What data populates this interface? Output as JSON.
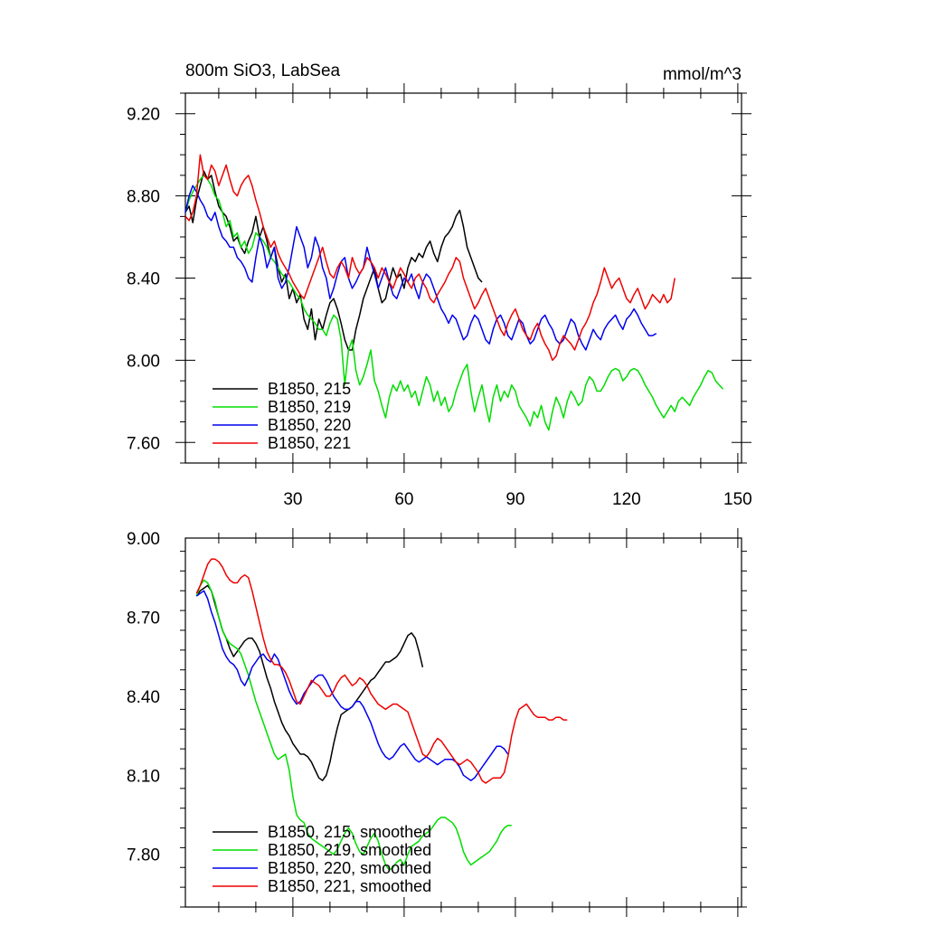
{
  "chart_data": [
    {
      "type": "line",
      "title": "800m SiO3, LabSea",
      "units": "mmol/m^3",
      "xlabel": "",
      "ylabel": "",
      "xlim": [
        1,
        151
      ],
      "ylim": [
        7.5,
        9.3
      ],
      "x_ticks": [
        30,
        60,
        90,
        120,
        150
      ],
      "x_tick_labels": [
        "30",
        "60",
        "90",
        "120",
        "150"
      ],
      "y_ticks": [
        7.6,
        8.0,
        8.4,
        8.8,
        9.2
      ],
      "y_tick_labels": [
        "7.60",
        "8.00",
        "8.40",
        "8.80",
        "9.20"
      ],
      "legend_position": "bottom-left",
      "series": [
        {
          "name": "B1850, 215",
          "color": "#000000",
          "x_start": 1,
          "values": [
            8.72,
            8.75,
            8.67,
            8.78,
            8.85,
            8.92,
            8.88,
            8.9,
            8.82,
            8.75,
            8.72,
            8.7,
            8.65,
            8.58,
            8.6,
            8.55,
            8.52,
            8.58,
            8.62,
            8.7,
            8.6,
            8.65,
            8.58,
            8.5,
            8.55,
            8.45,
            8.38,
            8.42,
            8.3,
            8.35,
            8.28,
            8.32,
            8.2,
            8.15,
            8.25,
            8.1,
            8.2,
            8.15,
            8.22,
            8.28,
            8.3,
            8.25,
            8.18,
            8.1,
            8.05,
            8.05,
            8.15,
            8.22,
            8.3,
            8.35,
            8.4,
            8.45,
            8.35,
            8.28,
            8.3,
            8.38,
            8.45,
            8.4,
            8.42,
            8.35,
            8.45,
            8.5,
            8.48,
            8.52,
            8.5,
            8.55,
            8.58,
            8.52,
            8.48,
            8.55,
            8.6,
            8.62,
            8.65,
            8.7,
            8.73,
            8.65,
            8.55,
            8.5,
            8.45,
            8.4,
            8.38
          ]
        },
        {
          "name": "B1850, 219",
          "color": "#00dd00",
          "x_start": 1,
          "values": [
            8.72,
            8.78,
            8.82,
            8.85,
            8.88,
            8.9,
            8.88,
            8.85,
            8.8,
            8.78,
            8.72,
            8.65,
            8.68,
            8.6,
            8.62,
            8.55,
            8.58,
            8.52,
            8.55,
            8.62,
            8.6,
            8.58,
            8.55,
            8.5,
            8.48,
            8.45,
            8.42,
            8.4,
            8.38,
            8.35,
            8.32,
            8.3,
            8.25,
            8.22,
            8.2,
            8.18,
            8.15,
            8.15,
            8.12,
            8.18,
            8.22,
            8.2,
            8.1,
            7.88,
            8.05,
            8.1,
            7.95,
            7.88,
            7.92,
            7.98,
            8.05,
            7.9,
            7.85,
            7.78,
            7.72,
            7.82,
            7.88,
            7.85,
            7.9,
            7.85,
            7.88,
            7.82,
            7.85,
            7.78,
            7.85,
            7.92,
            7.88,
            7.8,
            7.85,
            7.78,
            7.82,
            7.75,
            7.78,
            7.85,
            7.9,
            7.95,
            7.98,
            7.85,
            7.75,
            7.82,
            7.88,
            7.78,
            7.7,
            7.82,
            7.88,
            7.8,
            7.85,
            7.82,
            7.88,
            7.85,
            7.78,
            7.75,
            7.72,
            7.68,
            7.75,
            7.72,
            7.78,
            7.7,
            7.66,
            7.75,
            7.82,
            7.78,
            7.72,
            7.8,
            7.85,
            7.82,
            7.78,
            7.8,
            7.88,
            7.92,
            7.9,
            7.85,
            7.85,
            7.88,
            7.92,
            7.95,
            7.96,
            7.95,
            7.9,
            7.92,
            7.95,
            7.96,
            7.95,
            7.92,
            7.88,
            7.85,
            7.82,
            7.78,
            7.75,
            7.72,
            7.75,
            7.78,
            7.75,
            7.8,
            7.82,
            7.8,
            7.78,
            7.82,
            7.85,
            7.88,
            7.92,
            7.95,
            7.94,
            7.9,
            7.88,
            7.86
          ]
        },
        {
          "name": "B1850, 220",
          "color": "#0000ee",
          "x_start": 1,
          "values": [
            8.72,
            8.8,
            8.85,
            8.82,
            8.78,
            8.75,
            8.7,
            8.68,
            8.72,
            8.65,
            8.6,
            8.58,
            8.55,
            8.55,
            8.5,
            8.48,
            8.45,
            8.4,
            8.38,
            8.5,
            8.6,
            8.55,
            8.45,
            8.5,
            8.55,
            8.4,
            8.35,
            8.38,
            8.45,
            8.55,
            8.65,
            8.6,
            8.55,
            8.45,
            8.5,
            8.6,
            8.55,
            8.45,
            8.4,
            8.3,
            8.35,
            8.42,
            8.48,
            8.5,
            8.4,
            8.35,
            8.38,
            8.42,
            8.45,
            8.55,
            8.48,
            8.42,
            8.35,
            8.4,
            8.45,
            8.38,
            8.32,
            8.3,
            8.35,
            8.4,
            8.38,
            8.42,
            8.35,
            8.3,
            8.38,
            8.42,
            8.4,
            8.35,
            8.3,
            8.25,
            8.22,
            8.18,
            8.22,
            8.2,
            8.15,
            8.1,
            8.12,
            8.18,
            8.22,
            8.2,
            8.15,
            8.1,
            8.08,
            8.15,
            8.2,
            8.22,
            8.18,
            8.12,
            8.1,
            8.15,
            8.2,
            8.18,
            8.12,
            8.08,
            8.1,
            8.15,
            8.2,
            8.22,
            8.18,
            8.15,
            8.1,
            8.08,
            8.1,
            8.15,
            8.2,
            8.18,
            8.12,
            8.08,
            8.05,
            8.1,
            8.15,
            8.12,
            8.1,
            8.15,
            8.18,
            8.2,
            8.22,
            8.18,
            8.15,
            8.2,
            8.22,
            8.25,
            8.22,
            8.18,
            8.15,
            8.12,
            8.12,
            8.13
          ]
        },
        {
          "name": "B1850, 221",
          "color": "#ee0000",
          "x_start": 1,
          "values": [
            8.7,
            8.68,
            8.72,
            8.8,
            9.0,
            8.9,
            8.88,
            8.95,
            8.92,
            8.85,
            8.9,
            8.95,
            8.88,
            8.82,
            8.8,
            8.85,
            8.88,
            8.9,
            8.85,
            8.78,
            8.72,
            8.65,
            8.6,
            8.55,
            8.58,
            8.52,
            8.48,
            8.45,
            8.42,
            8.38,
            8.35,
            8.32,
            8.3,
            8.35,
            8.4,
            8.45,
            8.5,
            8.55,
            8.48,
            8.42,
            8.4,
            8.45,
            8.48,
            8.45,
            8.4,
            8.5,
            8.45,
            8.42,
            8.45,
            8.5,
            8.48,
            8.45,
            8.4,
            8.45,
            8.42,
            8.38,
            8.35,
            8.4,
            8.45,
            8.42,
            8.38,
            8.35,
            8.4,
            8.42,
            8.38,
            8.35,
            8.3,
            8.28,
            8.32,
            8.35,
            8.38,
            8.42,
            8.45,
            8.5,
            8.48,
            8.4,
            8.35,
            8.3,
            8.25,
            8.28,
            8.32,
            8.35,
            8.3,
            8.25,
            8.2,
            8.15,
            8.12,
            8.18,
            8.22,
            8.25,
            8.2,
            8.15,
            8.12,
            8.1,
            8.15,
            8.18,
            8.12,
            8.08,
            8.05,
            8.0,
            8.02,
            8.08,
            8.12,
            8.1,
            8.08,
            8.05,
            8.1,
            8.15,
            8.18,
            8.22,
            8.28,
            8.32,
            8.38,
            8.45,
            8.4,
            8.35,
            8.38,
            8.4,
            8.35,
            8.3,
            8.28,
            8.32,
            8.35,
            8.3,
            8.25,
            8.28,
            8.32,
            8.3,
            8.28,
            8.32,
            8.28,
            8.3,
            8.4
          ]
        }
      ]
    },
    {
      "type": "line",
      "title": "",
      "xlabel": "",
      "ylabel": "",
      "xlim": [
        1,
        151
      ],
      "ylim": [
        7.6,
        9.0
      ],
      "x_ticks": [
        30,
        60,
        90,
        120,
        150
      ],
      "y_ticks": [
        7.8,
        8.1,
        8.4,
        8.7,
        9.0
      ],
      "y_tick_labels": [
        "7.80",
        "8.10",
        "8.40",
        "8.70",
        "9.00"
      ],
      "legend_position": "bottom-left",
      "series": [
        {
          "name": "B1850, 215, smoothed",
          "color": "#000000",
          "x_start": 4,
          "values": [
            8.78,
            8.8,
            8.81,
            8.82,
            8.8,
            8.75,
            8.7,
            8.65,
            8.62,
            8.58,
            8.55,
            8.57,
            8.59,
            8.61,
            8.62,
            8.62,
            8.6,
            8.57,
            8.52,
            8.47,
            8.43,
            8.38,
            8.34,
            8.3,
            8.27,
            8.25,
            8.22,
            8.2,
            8.18,
            8.18,
            8.17,
            8.15,
            8.12,
            8.09,
            8.08,
            8.1,
            8.15,
            8.22,
            8.28,
            8.33,
            8.34,
            8.35,
            8.36,
            8.38,
            8.4,
            8.42,
            8.44,
            8.46,
            8.47,
            8.49,
            8.51,
            8.53,
            8.53,
            8.54,
            8.55,
            8.57,
            8.6,
            8.63,
            8.64,
            8.62,
            8.57,
            8.51
          ]
        },
        {
          "name": "B1850, 219, smoothed",
          "color": "#00dd00",
          "x_start": 4,
          "values": [
            8.78,
            8.82,
            8.84,
            8.83,
            8.8,
            8.76,
            8.7,
            8.65,
            8.62,
            8.6,
            8.59,
            8.58,
            8.56,
            8.52,
            8.48,
            8.43,
            8.38,
            8.34,
            8.3,
            8.26,
            8.22,
            8.18,
            8.16,
            8.17,
            8.18,
            8.12,
            8.02,
            7.95,
            7.93,
            7.92,
            7.88,
            7.86,
            7.85,
            7.84,
            7.83,
            7.82,
            7.81,
            7.8,
            7.82,
            7.85,
            7.88,
            7.9,
            7.88,
            7.84,
            7.81,
            7.8,
            7.83,
            7.86,
            7.88,
            7.85,
            7.8,
            7.76,
            7.74,
            7.75,
            7.77,
            7.78,
            7.76,
            7.8,
            7.83,
            7.84,
            7.85,
            7.87,
            7.88,
            7.89,
            7.91,
            7.93,
            7.94,
            7.94,
            7.93,
            7.92,
            7.9,
            7.86,
            7.81,
            7.78,
            7.76,
            7.77,
            7.78,
            7.79,
            7.8,
            7.81,
            7.83,
            7.85,
            7.88,
            7.9,
            7.91,
            7.91
          ]
        },
        {
          "name": "B1850, 220, smoothed",
          "color": "#0000ee",
          "x_start": 4,
          "values": [
            8.78,
            8.79,
            8.8,
            8.77,
            8.72,
            8.68,
            8.63,
            8.58,
            8.55,
            8.53,
            8.52,
            8.5,
            8.46,
            8.44,
            8.47,
            8.51,
            8.53,
            8.55,
            8.56,
            8.54,
            8.53,
            8.56,
            8.54,
            8.5,
            8.46,
            8.42,
            8.39,
            8.37,
            8.38,
            8.41,
            8.43,
            8.45,
            8.47,
            8.48,
            8.48,
            8.46,
            8.43,
            8.4,
            8.38,
            8.36,
            8.35,
            8.35,
            8.36,
            8.38,
            8.38,
            8.36,
            8.33,
            8.3,
            8.26,
            8.22,
            8.19,
            8.17,
            8.16,
            8.17,
            8.19,
            8.21,
            8.22,
            8.2,
            8.18,
            8.16,
            8.15,
            8.16,
            8.17,
            8.16,
            8.15,
            8.14,
            8.15,
            8.16,
            8.16,
            8.16,
            8.15,
            8.13,
            8.1,
            8.09,
            8.08,
            8.09,
            8.11,
            8.13,
            8.15,
            8.17,
            8.19,
            8.21,
            8.21,
            8.2,
            8.18
          ]
        },
        {
          "name": "B1850, 221, smoothed",
          "color": "#ee0000",
          "x_start": 4,
          "values": [
            8.79,
            8.82,
            8.86,
            8.9,
            8.92,
            8.92,
            8.91,
            8.89,
            8.86,
            8.84,
            8.83,
            8.83,
            8.85,
            8.86,
            8.85,
            8.8,
            8.74,
            8.68,
            8.62,
            8.57,
            8.54,
            8.52,
            8.52,
            8.51,
            8.49,
            8.46,
            8.42,
            8.38,
            8.37,
            8.4,
            8.43,
            8.46,
            8.45,
            8.44,
            8.42,
            8.4,
            8.4,
            8.42,
            8.45,
            8.47,
            8.48,
            8.46,
            8.44,
            8.45,
            8.47,
            8.46,
            8.44,
            8.41,
            8.39,
            8.37,
            8.36,
            8.35,
            8.36,
            8.37,
            8.37,
            8.36,
            8.35,
            8.34,
            8.3,
            8.26,
            8.22,
            8.18,
            8.17,
            8.19,
            8.22,
            8.24,
            8.23,
            8.21,
            8.19,
            8.17,
            8.15,
            8.14,
            8.15,
            8.16,
            8.15,
            8.13,
            8.11,
            8.08,
            8.07,
            8.08,
            8.09,
            8.09,
            8.09,
            8.11,
            8.17,
            8.25,
            8.31,
            8.35,
            8.36,
            8.37,
            8.35,
            8.33,
            8.32,
            8.32,
            8.32,
            8.31,
            8.31,
            8.32,
            8.32,
            8.31,
            8.31
          ]
        }
      ]
    }
  ]
}
